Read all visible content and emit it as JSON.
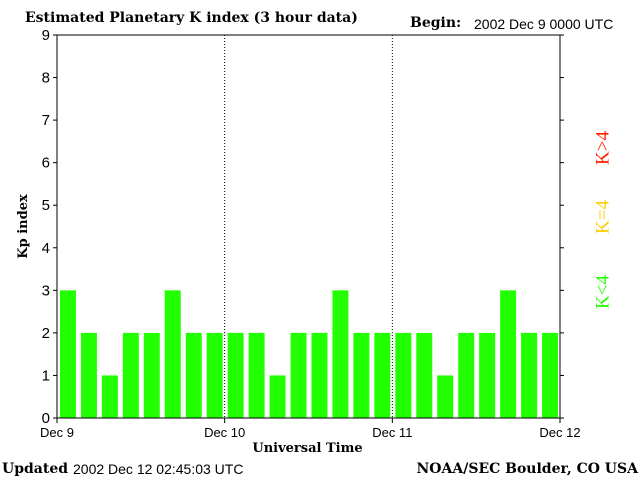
{
  "header": {
    "title": "Estimated Planetary K index (3 hour data)",
    "begin_label": "Begin:",
    "begin_value": "2002 Dec 9 0000 UTC"
  },
  "footer": {
    "updated_label": "Updated",
    "updated_value": "2002 Dec 12 02:45:03 UTC",
    "source": "NOAA/SEC Boulder, CO USA"
  },
  "legend": {
    "items": [
      {
        "label": "K<4",
        "color": "#22ff00"
      },
      {
        "label": "K=4",
        "color": "#ffcc00"
      },
      {
        "label": "K>4",
        "color": "#ff2200"
      }
    ]
  },
  "chart_data": {
    "type": "bar",
    "xlabel": "Universal Time",
    "ylabel": "Kp index",
    "ylim": [
      0,
      9
    ],
    "yticks": [
      0,
      1,
      2,
      3,
      4,
      5,
      6,
      7,
      8,
      9
    ],
    "xtick_labels": [
      "Dec 9",
      "Dec 10",
      "Dec 11",
      "Dec 12"
    ],
    "day_separators": [
      "Dec 10",
      "Dec 11"
    ],
    "values": [
      3,
      2,
      1,
      2,
      2,
      3,
      2,
      2,
      2,
      2,
      1,
      2,
      2,
      3,
      2,
      2,
      2,
      2,
      1,
      2,
      2,
      3,
      2,
      2
    ],
    "bar_color": "#22ff00",
    "grid": false
  }
}
